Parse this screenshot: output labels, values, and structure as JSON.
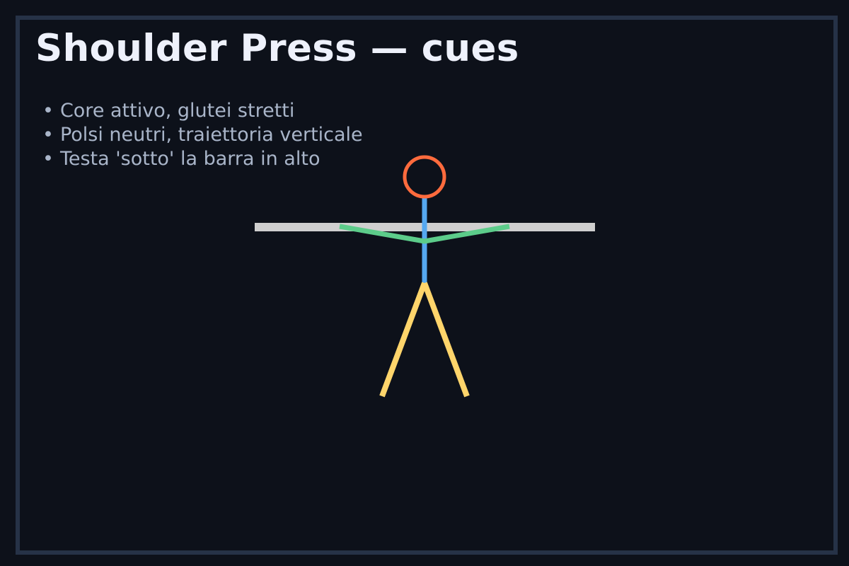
{
  "title": "Shoulder Press — cues",
  "cues": [
    "Core attivo, glutei stretti",
    "Polsi neutri, traiettoria verticale",
    "Testa 'sotto' la barra in alto"
  ],
  "bullet": "•",
  "colors": {
    "background": "#0d111a",
    "frame": "#263247",
    "title": "#eef1fb",
    "text": "#a9b5c9",
    "head": "#ff6b3d",
    "torso": "#55a8f0",
    "arms": "#5ccc8a",
    "legs": "#ffd56b",
    "bar": "#cfcfcf"
  }
}
